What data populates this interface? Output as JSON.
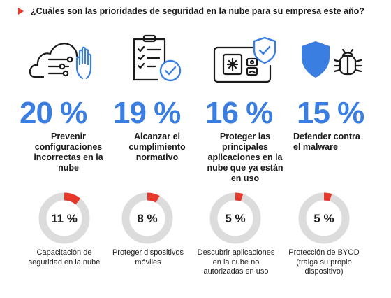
{
  "title": "¿Cuáles son las prioridades de seguridad en la nube para su empresa este año?",
  "colors": {
    "accent_blue": "#3b7ee2",
    "accent_red": "#e8382c",
    "ring_gray": "#dcdcdc"
  },
  "chart_data": [
    {
      "type": "stat",
      "items": [
        {
          "value": "20 %",
          "percent": 20,
          "label": "Prevenir configuraciones incorrectas en la nube",
          "icon": "cloud-settings-hand-icon"
        },
        {
          "value": "19 %",
          "percent": 19,
          "label": "Alcanzar el cumplimiento normativo",
          "icon": "checklist-icon"
        },
        {
          "value": "16 %",
          "percent": 16,
          "label": "Proteger las principales aplicaciones en la nube que ya están en uso",
          "icon": "app-panel-shield-icon"
        },
        {
          "value": "15 %",
          "percent": 15,
          "label": "Defender contra el malware",
          "icon": "shield-bug-icon"
        }
      ]
    },
    {
      "type": "pie",
      "items": [
        {
          "value": "11 %",
          "percent": 11,
          "label": "Capacitación de seguridad en la nube"
        },
        {
          "value": "8 %",
          "percent": 8,
          "label": "Proteger dispositivos móviles"
        },
        {
          "value": "5 %",
          "percent": 5,
          "label": "Descubrir aplicaciones en la nube no autorizadas en uso"
        },
        {
          "value": "5 %",
          "percent": 5,
          "label": "Protección de BYOD (traiga su propio dispositivo)"
        }
      ]
    }
  ]
}
